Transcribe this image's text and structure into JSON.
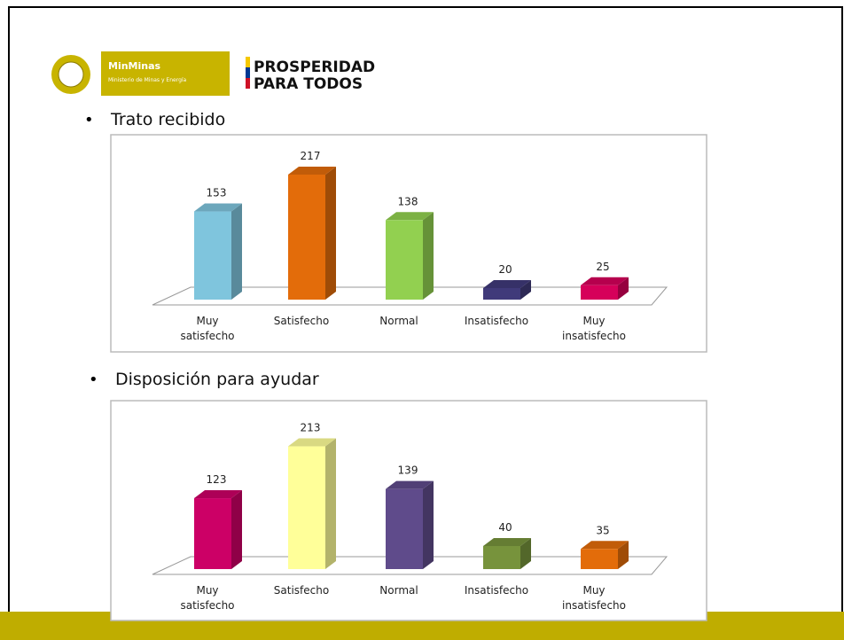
{
  "header": {
    "ministry": "MinMinas",
    "ministry_subtitle": "Ministerio de Minas y Energía",
    "slogan_line1": "PROSPERIDAD",
    "slogan_line2": "PARA TODOS"
  },
  "bullets": [
    "Trato recibido",
    "Disposición para ayudar"
  ],
  "chart_data": [
    {
      "type": "bar3d",
      "categories": [
        [
          "Muy",
          "satisfecho"
        ],
        [
          "Satisfecho"
        ],
        [
          "Normal"
        ],
        [
          "Insatisfecho"
        ],
        [
          "Muy",
          "insatisfecho"
        ]
      ],
      "values": [
        153,
        217,
        138,
        20,
        25
      ],
      "colors": [
        "#7fc5dd",
        "#e36c0a",
        "#92d050",
        "#403a7a",
        "#d6005a"
      ]
    },
    {
      "type": "bar3d",
      "categories": [
        [
          "Muy",
          "satisfecho"
        ],
        [
          "Satisfecho"
        ],
        [
          "Normal"
        ],
        [
          "Insatisfecho"
        ],
        [
          "Muy",
          "insatisfecho"
        ]
      ],
      "values": [
        123,
        213,
        139,
        40,
        35
      ],
      "colors": [
        "#cc0066",
        "#ffff99",
        "#5f4b8b",
        "#77933c",
        "#e36c0a"
      ]
    }
  ]
}
